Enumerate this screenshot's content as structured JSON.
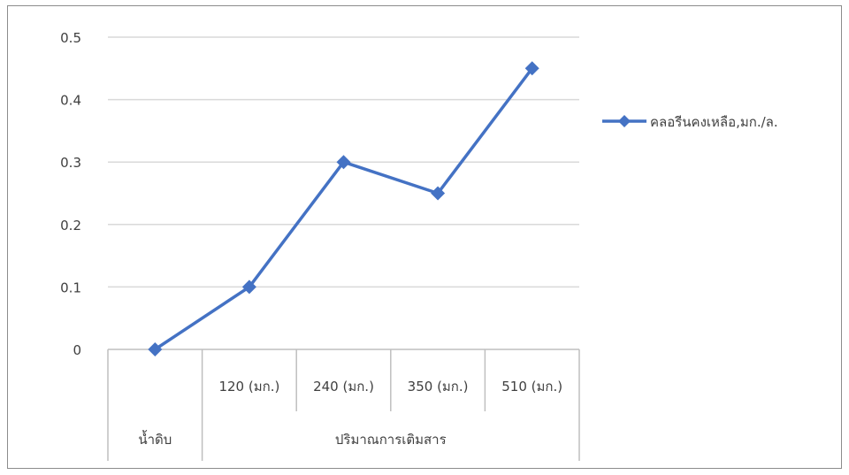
{
  "chart_data": {
    "type": "line",
    "categories": [
      {
        "label": "",
        "group": "น้ำดิบ"
      },
      {
        "label": "120 (มก.)",
        "group": "ปริมาณการเติมสาร"
      },
      {
        "label": "240 (มก.)",
        "group": "ปริมาณการเติมสาร"
      },
      {
        "label": "350 (มก.)",
        "group": "ปริมาณการเติมสาร"
      },
      {
        "label": "510 (มก.)",
        "group": "ปริมาณการเติมสาร"
      }
    ],
    "groups": [
      "น้ำดิบ",
      "ปริมาณการเติมสาร"
    ],
    "series": [
      {
        "name": "คลอรีนคงเหลือ,มก./ล.",
        "values": [
          0,
          0.1,
          0.3,
          0.25,
          0.45
        ],
        "color": "#4472c4"
      }
    ],
    "yticks": [
      "0",
      "0.1",
      "0.2",
      "0.3",
      "0.4",
      "0.5"
    ],
    "ylim": [
      0,
      0.5
    ],
    "grid": true,
    "legend_position": "right",
    "gridline_color": "#d9d9d9",
    "axis_color": "#bfbfbf"
  }
}
